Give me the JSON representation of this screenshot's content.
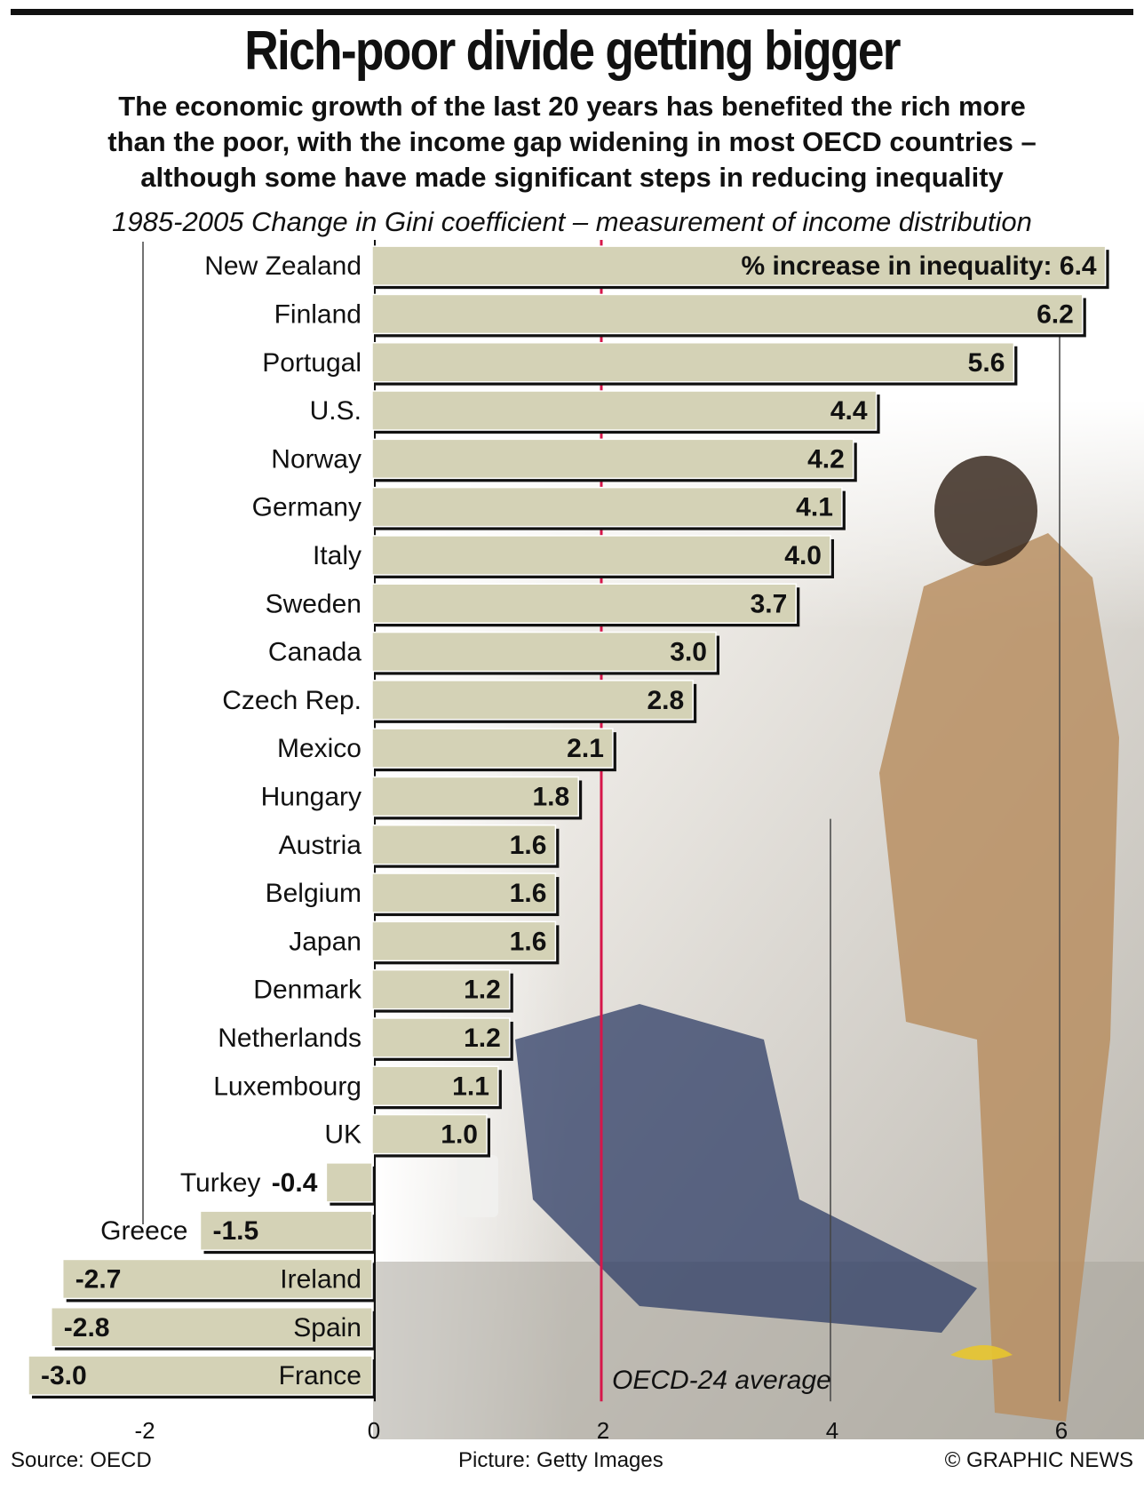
{
  "header": {
    "title": "Rich-poor divide getting bigger",
    "subtitle_lines": [
      "The economic growth of the last 20 years has benefited the rich more",
      "than the poor, with the income gap widening in most OECD countries –",
      "although some have made significant steps in reducing inequality"
    ],
    "caption": "1985-2005 Change in Gini coefficient – measurement of income distribution"
  },
  "chart_data": {
    "type": "bar",
    "orientation": "horizontal",
    "categories": [
      "New Zealand",
      "Finland",
      "Portugal",
      "U.S.",
      "Norway",
      "Germany",
      "Italy",
      "Sweden",
      "Canada",
      "Czech Rep.",
      "Mexico",
      "Hungary",
      "Austria",
      "Belgium",
      "Japan",
      "Denmark",
      "Netherlands",
      "Luxembourg",
      "UK",
      "Turkey",
      "Greece",
      "Ireland",
      "Spain",
      "France"
    ],
    "values": [
      6.4,
      6.2,
      5.6,
      4.4,
      4.2,
      4.1,
      4.0,
      3.7,
      3.0,
      2.8,
      2.1,
      1.8,
      1.6,
      1.6,
      1.6,
      1.2,
      1.2,
      1.1,
      1.0,
      -0.4,
      -1.5,
      -2.7,
      -2.8,
      -3.0
    ],
    "value_labels": [
      "6.4",
      "6.2",
      "5.6",
      "4.4",
      "4.2",
      "4.1",
      "4.0",
      "3.7",
      "3.0",
      "2.8",
      "2.1",
      "1.8",
      "1.6",
      "1.6",
      "1.6",
      "1.2",
      "1.2",
      "1.1",
      "1.0",
      "-0.4",
      "-1.5",
      "-2.7",
      "-2.8",
      "-3.0"
    ],
    "first_label_prefix": "% increase in inequality: ",
    "reference_line": {
      "value": 2.0,
      "label": "OECD-24 average",
      "color": "#d6164a"
    },
    "xticks": [
      -2,
      0,
      2,
      4,
      6
    ],
    "xtick_labels": [
      "-2",
      "0",
      "2",
      "4",
      "6"
    ],
    "xlim": [
      -3.0,
      6.6
    ],
    "bar_color": "#d4d2b6",
    "bar_shadow_color": "#111111"
  },
  "footer": {
    "source": "Source: OECD",
    "picture": "Picture: Getty Images",
    "credit": "© GRAPHIC NEWS"
  }
}
